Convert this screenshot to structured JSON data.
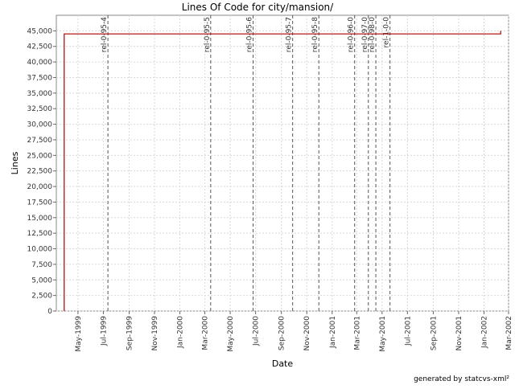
{
  "chart_data": {
    "type": "line",
    "title": "Lines Of Code for city/mansion/",
    "xlabel": "Date",
    "ylabel": "Lines",
    "footer": "generated by statcvs-xml²",
    "y_ticks": [
      0,
      2500,
      5000,
      7500,
      10000,
      12500,
      15000,
      17500,
      20000,
      22500,
      25000,
      27500,
      30000,
      32500,
      35000,
      37500,
      40000,
      42500,
      45000
    ],
    "ylim": [
      0,
      47500
    ],
    "xlim": [
      "1999-03-10",
      "2002-03-01"
    ],
    "x_ticks": [
      {
        "date": "1999-05-01",
        "label": "May-1999"
      },
      {
        "date": "1999-07-01",
        "label": "Jul-1999"
      },
      {
        "date": "1999-09-01",
        "label": "Sep-1999"
      },
      {
        "date": "1999-11-01",
        "label": "Nov-1999"
      },
      {
        "date": "2000-01-01",
        "label": "Jan-2000"
      },
      {
        "date": "2000-03-01",
        "label": "Mar-2000"
      },
      {
        "date": "2000-05-01",
        "label": "May-2000"
      },
      {
        "date": "2000-07-01",
        "label": "Jul-2000"
      },
      {
        "date": "2000-09-01",
        "label": "Sep-2000"
      },
      {
        "date": "2000-11-01",
        "label": "Nov-2000"
      },
      {
        "date": "2001-01-01",
        "label": "Jan-2001"
      },
      {
        "date": "2001-03-01",
        "label": "Mar-2001"
      },
      {
        "date": "2001-05-01",
        "label": "May-2001"
      },
      {
        "date": "2001-07-01",
        "label": "Jul-2001"
      },
      {
        "date": "2001-09-01",
        "label": "Sep-2001"
      },
      {
        "date": "2001-11-01",
        "label": "Nov-2001"
      },
      {
        "date": "2002-01-01",
        "label": "Jan-2002"
      },
      {
        "date": "2002-03-01",
        "label": "Mar-2002"
      }
    ],
    "series": [
      {
        "color": "#aa0000",
        "points": [
          {
            "x": "1999-03-29",
            "y": 0
          },
          {
            "x": "1999-03-29",
            "y": 44500
          },
          {
            "x": "2002-02-10",
            "y": 44500
          },
          {
            "x": "2002-02-10",
            "y": 45000
          }
        ]
      }
    ],
    "markers": [
      {
        "date": "1999-07-12",
        "label": "rel-0-95-4"
      },
      {
        "date": "2000-03-15",
        "label": "rel-0-95-5"
      },
      {
        "date": "2000-06-25",
        "label": "rel-0-95-6"
      },
      {
        "date": "2000-09-28",
        "label": "rel-0-95-7"
      },
      {
        "date": "2000-11-30",
        "label": "rel-0-95-8"
      },
      {
        "date": "2001-02-24",
        "label": "rel-0-96-0"
      },
      {
        "date": "2001-03-29",
        "label": "rel-0-97-0"
      },
      {
        "date": "2001-04-16",
        "label": "rel-0-98-0"
      },
      {
        "date": "2001-05-20",
        "label": "rel-1-0-0"
      }
    ],
    "grid": true,
    "legend": "none"
  }
}
